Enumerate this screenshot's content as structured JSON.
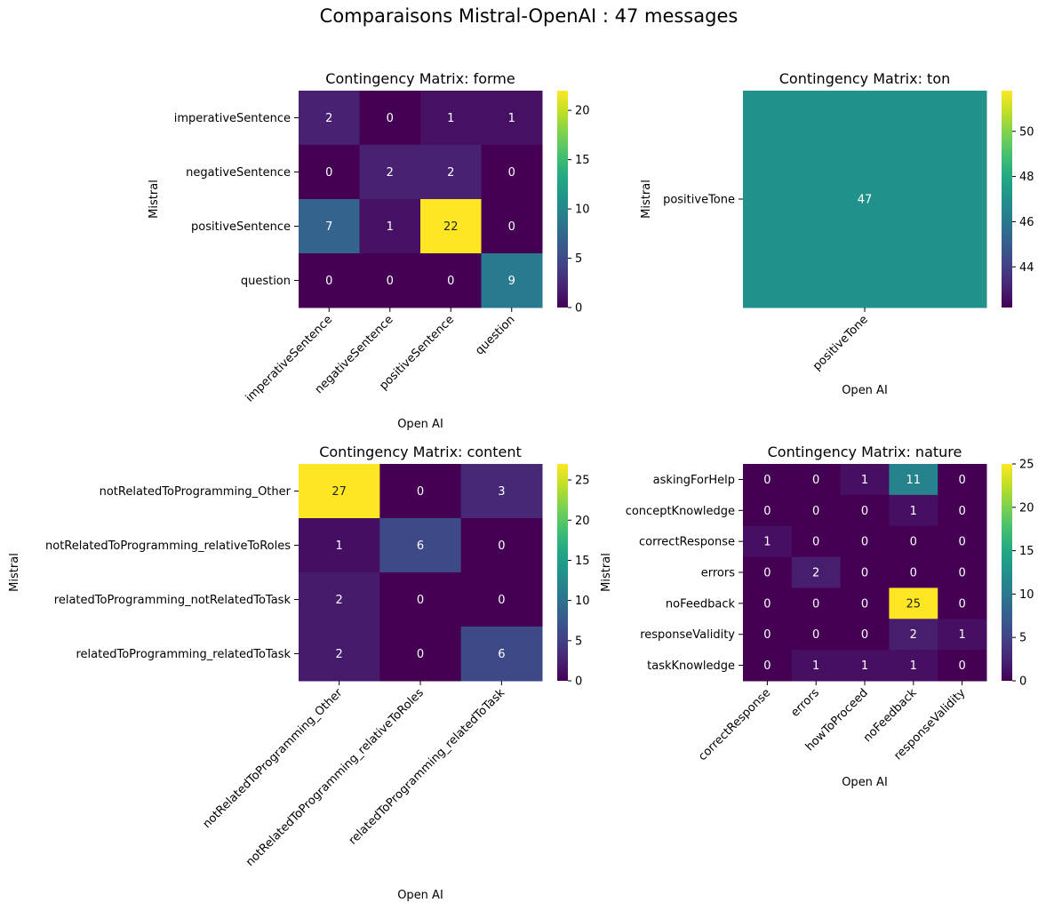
{
  "suptitle": "Comparaisons Mistral-OpenAI : 47 messages",
  "chart_data": [
    {
      "type": "heatmap",
      "title": "Contingency Matrix: forme",
      "xlabel": "Open AI",
      "ylabel": "Mistral",
      "rows": [
        "imperativeSentence",
        "negativeSentence",
        "positiveSentence",
        "question"
      ],
      "cols": [
        "imperativeSentence",
        "negativeSentence",
        "positiveSentence",
        "question"
      ],
      "values": [
        [
          2,
          0,
          1,
          1
        ],
        [
          0,
          2,
          2,
          0
        ],
        [
          7,
          1,
          22,
          0
        ],
        [
          0,
          0,
          0,
          9
        ]
      ],
      "colormap": "viridis",
      "colorbar_range": [
        0,
        22
      ],
      "colorbar_ticks": [
        0,
        5,
        10,
        15,
        20
      ]
    },
    {
      "type": "heatmap",
      "title": "Contingency Matrix: ton",
      "xlabel": "Open AI",
      "ylabel": "Mistral",
      "rows": [
        "positiveTone"
      ],
      "cols": [
        "positiveTone"
      ],
      "values": [
        [
          47
        ]
      ],
      "colormap": "viridis",
      "colorbar_range": [
        42.2,
        51.8
      ],
      "colorbar_ticks": [
        44,
        46,
        48,
        50
      ]
    },
    {
      "type": "heatmap",
      "title": "Contingency Matrix: content",
      "xlabel": "Open AI",
      "ylabel": "Mistral",
      "rows": [
        "notRelatedToProgramming_Other",
        "notRelatedToProgramming_relativeToRoles",
        "relatedToProgramming_notRelatedToTask",
        "relatedToProgramming_relatedToTask"
      ],
      "cols": [
        "notRelatedToProgramming_Other",
        "notRelatedToProgramming_relativeToRoles",
        "relatedToProgramming_relatedToTask"
      ],
      "values": [
        [
          27,
          0,
          3
        ],
        [
          1,
          6,
          0
        ],
        [
          2,
          0,
          0
        ],
        [
          2,
          0,
          6
        ]
      ],
      "colormap": "viridis",
      "colorbar_range": [
        0,
        27
      ],
      "colorbar_ticks": [
        0,
        5,
        10,
        15,
        20,
        25
      ]
    },
    {
      "type": "heatmap",
      "title": "Contingency Matrix: nature",
      "xlabel": "Open AI",
      "ylabel": "Mistral",
      "rows": [
        "askingForHelp",
        "conceptKnowledge",
        "correctResponse",
        "errors",
        "noFeedback",
        "responseValidity",
        "taskKnowledge"
      ],
      "cols": [
        "correctResponse",
        "errors",
        "howToProceed",
        "noFeedback",
        "responseValidity"
      ],
      "values": [
        [
          0,
          0,
          1,
          11,
          0
        ],
        [
          0,
          0,
          0,
          1,
          0
        ],
        [
          1,
          0,
          0,
          0,
          0
        ],
        [
          0,
          2,
          0,
          0,
          0
        ],
        [
          0,
          0,
          0,
          25,
          0
        ],
        [
          0,
          0,
          0,
          2,
          1
        ],
        [
          0,
          1,
          1,
          1,
          0
        ]
      ],
      "colormap": "viridis",
      "colorbar_range": [
        0,
        25
      ],
      "colorbar_ticks": [
        0,
        5,
        10,
        15,
        20,
        25
      ]
    }
  ]
}
